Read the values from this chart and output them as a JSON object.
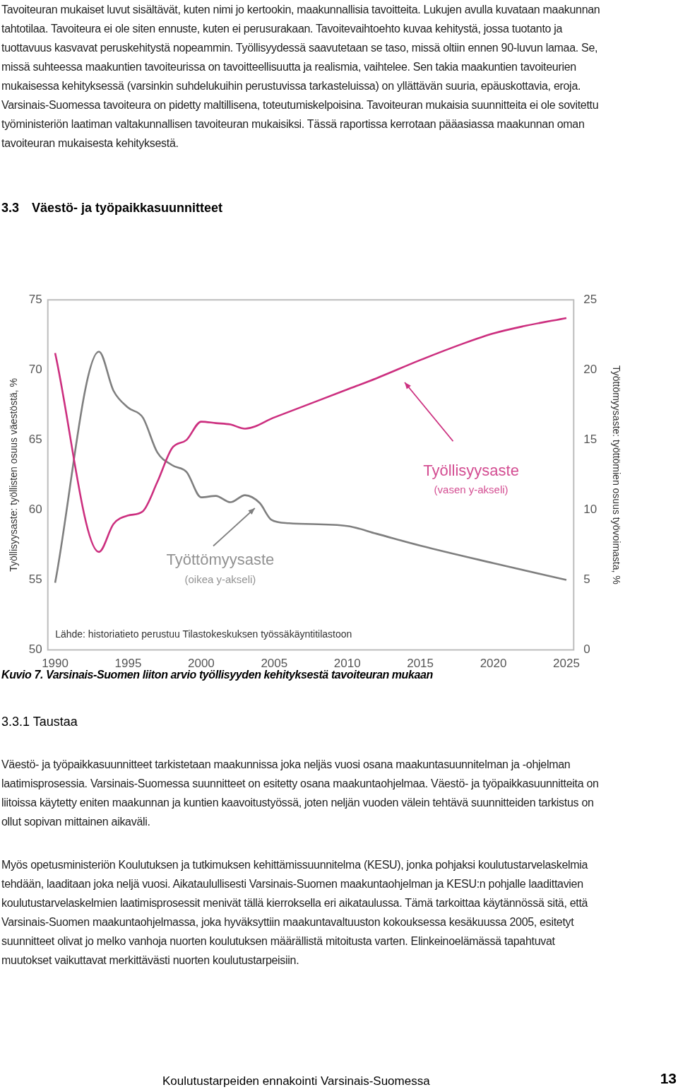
{
  "chart_data": {
    "type": "line",
    "title": "Kuvio 7. Varsinais-Suomen liiton arvio työllisyyden kehityksestä tavoiteuran mukaan",
    "ylabel": "Työllisyysaste: työllisten osuus väestöstä, %",
    "y2label": "Työttömyysaste: työttömien osuus työvoimasta, %",
    "xlim": [
      1989.5,
      2025.5
    ],
    "xticks": [
      1990,
      1995,
      2000,
      2005,
      2010,
      2015,
      2020,
      2025
    ],
    "ylim": [
      50,
      75
    ],
    "yticks": [
      50,
      55,
      60,
      65,
      70,
      75
    ],
    "y2lim": [
      0,
      25
    ],
    "y2ticks": [
      0,
      5,
      10,
      15,
      20,
      25
    ],
    "grid": false,
    "legend": false,
    "marker": "none",
    "series": [
      {
        "name": "Työllisyysaste",
        "color": "#cc2f7f",
        "x": [
          1990,
          1993,
          1994,
          1995,
          1996,
          1997,
          1998,
          1999,
          2000,
          2001,
          2002,
          2003,
          2005,
          2010,
          2012,
          2015,
          2018,
          2020,
          2022,
          2025
        ],
        "values": [
          71.2,
          57.0,
          59.0,
          59.6,
          59.9,
          62.0,
          64.4,
          65.0,
          66.3,
          66.2,
          66.1,
          65.8,
          66.6,
          68.6,
          69.4,
          70.7,
          71.9,
          72.6,
          73.1,
          73.7
        ]
      },
      {
        "name": "Työttömyysaste",
        "color": "#7f7f7f",
        "axis": "y2",
        "x": [
          1990,
          1993,
          1994,
          1995,
          1996,
          1997,
          1998,
          1999,
          2000,
          2001,
          2002,
          2003,
          2004,
          2004.8,
          2006,
          2010,
          2012,
          2015,
          2020,
          2025
        ],
        "values": [
          4.8,
          21.3,
          18.5,
          17.3,
          16.6,
          14.1,
          13.2,
          12.7,
          10.9,
          11.0,
          10.55,
          11.05,
          10.5,
          9.3,
          9.05,
          8.85,
          8.3,
          7.45,
          6.2,
          5.0
        ]
      }
    ],
    "annotations": [
      "Tavoiteuran mukaiset luvut sisältävät, kuten nimi jo kertookin, maakunnallisia tavoitteita. Lukujen avulla kuvataan maakunnan tahtotilaa. Tavoiteura ei ole siten ennuste, kuten ei perusurakaan. Tavoitevaihtoehto kuvaa kehitystä, jossa tuotanto ja tuottavuus kasvavat peruskehitystä nopeammin. Työllisyydessä saavutetaan se taso, missä oltiin ennen 90-luvun lamaa. Se, missä suhteessa maakuntien tavoiteurissa on tavoitteellisuutta ja realismia, vaihtelee. Sen takia maakuntien tavoiteurien mukaisessa kehityksessä (varsinkin suhdelukuihin perustuvissa tarkasteluissa) on yllättävän suuria, epäuskottavia, eroja. Varsinais-Suomessa tavoiteura on pidetty maltillisena, toteutumiskelpoisina. Tavoiteuran mukaisia suunnitteita ei ole sovitettu työministeriön laatiman valtakunnallisen tavoiteuran mukaisiksi. Tässä raportissa kerrotaan pääasiassa maakunnan oman tavoiteuran mukaisesta kehityksestä.",
      "3.3 Väestö- ja työpaikkasuunnitteet",
      "Lähde: historiatieto perustuu Tilastokeskuksen työssäkäyntitilastoon",
      "(vasen y-akseli)",
      "(oikea y-akseli)",
      "3.3.1 Taustaa",
      "Väestö- ja työpaikkasuunnitteet tarkistetaan maakunnissa joka neljäs vuosi osana maakuntasuunnitelman ja -ohjelman laatimisprosessia. Varsinais-Suomessa suunnitteet on esitetty osana maakuntaohjelmaa. Väestö- ja työpaikkasuunnitteita on liitoissa käytetty eniten maakunnan ja kuntien kaavoitustyössä, joten neljän vuoden välein tehtävä suunnitteiden tarkistus on ollut sopivan mittainen aikaväli.",
      "Myös opetusministeriön Koulutuksen ja tutkimuksen kehittämissuunnitelma (KESU), jonka pohjaksi koulutustarvelaskelmia tehdään, laaditaan joka neljä vuosi. Aikataulullisesti Varsinais-Suomen maakuntaohjelman ja KESU:n pohjalle laadittavien koulutustarvelaskelmien laatimisprosessit menivät tällä kierroksella eri aikataulussa. Tämä tarkoittaa käytännössä sitä, että Varsinais-Suomen maakuntaohjelmassa, joka hyväksyttiin maakuntavaltuuston kokouksessa kesäkuussa 2005, esitetyt suunnitteet olivat jo melko vanhoja nuorten koulutuksen määrällistä mitoitusta varten. Elinkeinoelämässä tapahtuvat muutokset vaikuttavat merkittävästi nuorten koulutustarpeisiin.",
      "Koulutustarpeiden ennakointi Varsinais-Suomessa",
      "13"
    ]
  }
}
